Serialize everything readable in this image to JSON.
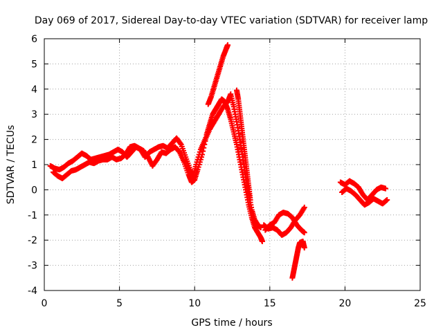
{
  "chart_data": {
    "type": "scatter",
    "title": "Day 069 of 2017, Sidereal Day-to-day VTEC variation (SDTVAR) for receiver lamp",
    "xlabel": "GPS time / hours",
    "ylabel": "SDTVAR / TECUs",
    "xlim": [
      0,
      25
    ],
    "ylim": [
      -4,
      6
    ],
    "xticks": [
      "0",
      "5",
      "10",
      "15",
      "20",
      "25"
    ],
    "yticks": [
      "-4",
      "-3",
      "-2",
      "-1",
      "0",
      "1",
      "2",
      "3",
      "4",
      "5",
      "6"
    ],
    "grid": true,
    "marker": "+",
    "color": "#ff0000",
    "series": [
      {
        "points": [
          [
            0.4,
            0.95
          ],
          [
            0.7,
            0.85
          ],
          [
            1.0,
            0.8
          ],
          [
            1.3,
            0.9
          ],
          [
            1.6,
            1.05
          ],
          [
            1.9,
            1.15
          ],
          [
            2.2,
            1.3
          ],
          [
            2.5,
            1.45
          ],
          [
            2.8,
            1.35
          ],
          [
            3.1,
            1.2
          ],
          [
            3.4,
            1.25
          ],
          [
            3.7,
            1.3
          ],
          [
            4.0,
            1.35
          ],
          [
            4.3,
            1.4
          ],
          [
            4.6,
            1.5
          ],
          [
            4.9,
            1.6
          ],
          [
            5.2,
            1.5
          ],
          [
            5.5,
            1.3
          ],
          [
            5.8,
            1.5
          ],
          [
            6.1,
            1.7
          ],
          [
            6.4,
            1.6
          ],
          [
            6.7,
            1.3
          ],
          [
            7.0,
            1.5
          ],
          [
            7.3,
            1.6
          ],
          [
            7.6,
            1.7
          ],
          [
            7.9,
            1.75
          ],
          [
            8.2,
            1.65
          ],
          [
            8.5,
            1.85
          ],
          [
            8.8,
            2.05
          ],
          [
            9.1,
            1.8
          ],
          [
            9.4,
            1.3
          ],
          [
            9.7,
            0.8
          ],
          [
            9.9,
            0.5
          ],
          [
            10.1,
            1.0
          ],
          [
            10.4,
            1.6
          ],
          [
            10.7,
            2.0
          ],
          [
            11.0,
            2.4
          ],
          [
            11.3,
            2.7
          ],
          [
            11.6,
            3.0
          ],
          [
            11.9,
            3.3
          ],
          [
            12.2,
            3.5
          ],
          [
            12.4,
            3.8
          ],
          [
            12.6,
            3.3
          ],
          [
            12.8,
            2.7
          ],
          [
            13.0,
            2.0
          ],
          [
            13.2,
            1.3
          ],
          [
            13.4,
            0.5
          ],
          [
            13.6,
            -0.2
          ],
          [
            13.8,
            -0.8
          ],
          [
            14.0,
            -1.2
          ],
          [
            14.2,
            -1.4
          ],
          [
            14.4,
            -1.5
          ]
        ]
      },
      {
        "points": [
          [
            0.6,
            0.7
          ],
          [
            0.9,
            0.55
          ],
          [
            1.2,
            0.45
          ],
          [
            1.5,
            0.6
          ],
          [
            1.8,
            0.75
          ],
          [
            2.1,
            0.8
          ],
          [
            2.4,
            0.9
          ],
          [
            2.7,
            1.0
          ],
          [
            3.0,
            1.1
          ],
          [
            3.3,
            1.05
          ],
          [
            3.6,
            1.15
          ],
          [
            3.9,
            1.2
          ],
          [
            4.2,
            1.2
          ],
          [
            4.5,
            1.3
          ],
          [
            4.8,
            1.2
          ],
          [
            5.1,
            1.25
          ],
          [
            5.4,
            1.4
          ],
          [
            5.7,
            1.7
          ],
          [
            6.0,
            1.75
          ],
          [
            6.3,
            1.65
          ],
          [
            6.6,
            1.55
          ],
          [
            6.9,
            1.3
          ],
          [
            7.2,
            0.95
          ],
          [
            7.5,
            1.2
          ],
          [
            7.8,
            1.5
          ],
          [
            8.1,
            1.45
          ],
          [
            8.4,
            1.6
          ],
          [
            8.7,
            1.7
          ],
          [
            9.0,
            1.5
          ],
          [
            9.3,
            1.1
          ],
          [
            9.6,
            0.6
          ],
          [
            9.8,
            0.3
          ],
          [
            10.0,
            0.4
          ],
          [
            10.2,
            0.8
          ],
          [
            10.5,
            1.4
          ],
          [
            10.8,
            2.2
          ],
          [
            11.0,
            2.6
          ],
          [
            11.2,
            3.0
          ],
          [
            11.4,
            3.2
          ],
          [
            11.6,
            3.4
          ],
          [
            11.8,
            3.6
          ],
          [
            12.0,
            3.5
          ],
          [
            12.2,
            3.2
          ],
          [
            12.4,
            2.8
          ],
          [
            12.6,
            2.3
          ],
          [
            12.8,
            1.8
          ],
          [
            13.0,
            1.2
          ],
          [
            13.2,
            0.6
          ],
          [
            13.4,
            0.0
          ],
          [
            13.6,
            -0.6
          ],
          [
            13.8,
            -1.1
          ],
          [
            14.0,
            -1.5
          ],
          [
            14.2,
            -1.7
          ],
          [
            14.4,
            -1.9
          ],
          [
            14.5,
            -2.05
          ]
        ]
      },
      {
        "points": [
          [
            10.9,
            3.4
          ],
          [
            11.1,
            3.7
          ],
          [
            11.3,
            4.1
          ],
          [
            11.5,
            4.5
          ],
          [
            11.7,
            4.9
          ],
          [
            11.9,
            5.3
          ],
          [
            12.1,
            5.6
          ],
          [
            12.2,
            5.75
          ]
        ]
      },
      {
        "points": [
          [
            12.8,
            3.95
          ],
          [
            12.9,
            3.6
          ],
          [
            13.0,
            3.1
          ],
          [
            13.1,
            2.6
          ],
          [
            13.2,
            2.1
          ],
          [
            13.3,
            1.6
          ],
          [
            13.4,
            1.1
          ],
          [
            13.5,
            0.6
          ],
          [
            13.6,
            0.1
          ],
          [
            13.7,
            -0.4
          ]
        ]
      },
      {
        "points": [
          [
            14.6,
            -1.4
          ],
          [
            14.9,
            -1.55
          ],
          [
            15.2,
            -1.5
          ],
          [
            15.5,
            -1.6
          ],
          [
            15.8,
            -1.8
          ],
          [
            16.1,
            -1.7
          ],
          [
            16.4,
            -1.5
          ],
          [
            16.7,
            -1.2
          ],
          [
            17.0,
            -1.0
          ],
          [
            17.3,
            -0.7
          ]
        ]
      },
      {
        "points": [
          [
            14.7,
            -1.6
          ],
          [
            15.0,
            -1.4
          ],
          [
            15.3,
            -1.3
          ],
          [
            15.6,
            -1.0
          ],
          [
            15.9,
            -0.9
          ],
          [
            16.2,
            -0.95
          ],
          [
            16.5,
            -1.1
          ],
          [
            16.8,
            -1.4
          ],
          [
            17.1,
            -1.6
          ],
          [
            17.3,
            -1.7
          ]
        ]
      },
      {
        "points": [
          [
            16.5,
            -3.5
          ],
          [
            16.6,
            -3.2
          ],
          [
            16.7,
            -2.9
          ],
          [
            16.8,
            -2.6
          ],
          [
            16.9,
            -2.3
          ],
          [
            17.0,
            -2.1
          ],
          [
            17.2,
            -2.05
          ],
          [
            17.3,
            -2.3
          ]
        ]
      },
      {
        "points": [
          [
            19.7,
            0.3
          ],
          [
            20.0,
            0.2
          ],
          [
            20.3,
            0.35
          ],
          [
            20.6,
            0.25
          ],
          [
            20.9,
            0.1
          ],
          [
            21.2,
            -0.2
          ],
          [
            21.5,
            -0.4
          ],
          [
            21.8,
            -0.2
          ],
          [
            22.1,
            0.0
          ],
          [
            22.4,
            0.1
          ],
          [
            22.7,
            0.05
          ]
        ]
      },
      {
        "points": [
          [
            19.8,
            -0.1
          ],
          [
            20.1,
            0.05
          ],
          [
            20.4,
            -0.05
          ],
          [
            20.7,
            -0.2
          ],
          [
            21.0,
            -0.4
          ],
          [
            21.3,
            -0.6
          ],
          [
            21.6,
            -0.5
          ],
          [
            21.9,
            -0.35
          ],
          [
            22.2,
            -0.45
          ],
          [
            22.5,
            -0.55
          ],
          [
            22.8,
            -0.4
          ]
        ]
      }
    ]
  }
}
